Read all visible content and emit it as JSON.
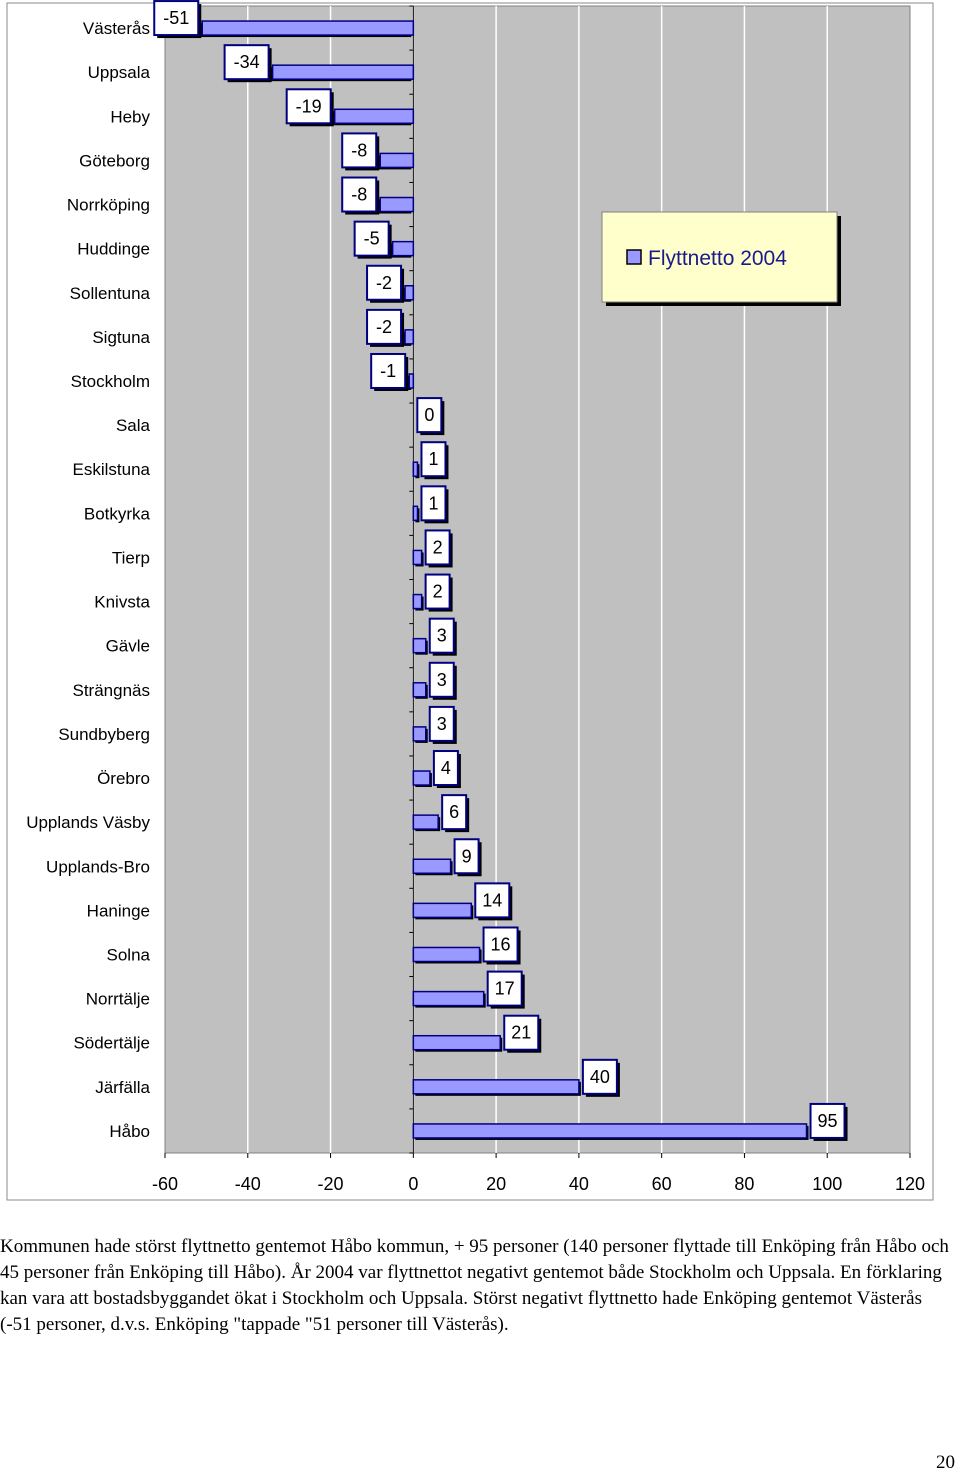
{
  "chart_data": {
    "type": "bar",
    "orientation": "horizontal",
    "categories": [
      "Västerås",
      "Uppsala",
      "Heby",
      "Göteborg",
      "Norrköping",
      "Huddinge",
      "Sollentuna",
      "Sigtuna",
      "Stockholm",
      "Sala",
      "Eskilstuna",
      "Botkyrka",
      "Tierp",
      "Knivsta",
      "Gävle",
      "Strängnäs",
      "Sundbyberg",
      "Örebro",
      "Upplands Väsby",
      "Upplands-Bro",
      "Haninge",
      "Solna",
      "Norrtälje",
      "Södertälje",
      "Järfälla",
      "Håbo"
    ],
    "series": [
      {
        "name": "Flyttnetto 2004",
        "values": [
          -51,
          -34,
          -19,
          -8,
          -8,
          -5,
          -2,
          -2,
          -1,
          0,
          1,
          1,
          2,
          2,
          3,
          3,
          3,
          4,
          6,
          9,
          14,
          16,
          17,
          21,
          40,
          95
        ]
      }
    ],
    "xlim": [
      -60,
      120
    ],
    "xticks": [
      "-60",
      "-40",
      "-20",
      "0",
      "20",
      "40",
      "60",
      "80",
      "100",
      "120"
    ],
    "grid": true,
    "legend_position": "top-right",
    "colors": {
      "bar_fill": "#9999ff",
      "bar_stroke": "#000080",
      "plot_bg": "#c0c0c0",
      "gridline": "#ffffff",
      "label_box_fill": "#ffffff",
      "label_box_stroke": "#000080",
      "legend_fill": "#ffffcc",
      "legend_text": "#1a1a8c"
    }
  },
  "caption": "Kommunen hade störst flyttnetto gentemot Håbo kommun, + 95 personer (140 personer flyttade till Enköping från Håbo och 45 personer från Enköping till Håbo). År 2004 var flyttnettot negativt gentemot både Stockholm och Uppsala. En förklaring kan vara att bostadsbyggandet ökat i Stockholm och Uppsala. Störst negativt flyttnetto hade Enköping gentemot Västerås (-51 personer, d.v.s. Enköping \"tappade \"51 personer till Västerås).",
  "page_number": "20"
}
